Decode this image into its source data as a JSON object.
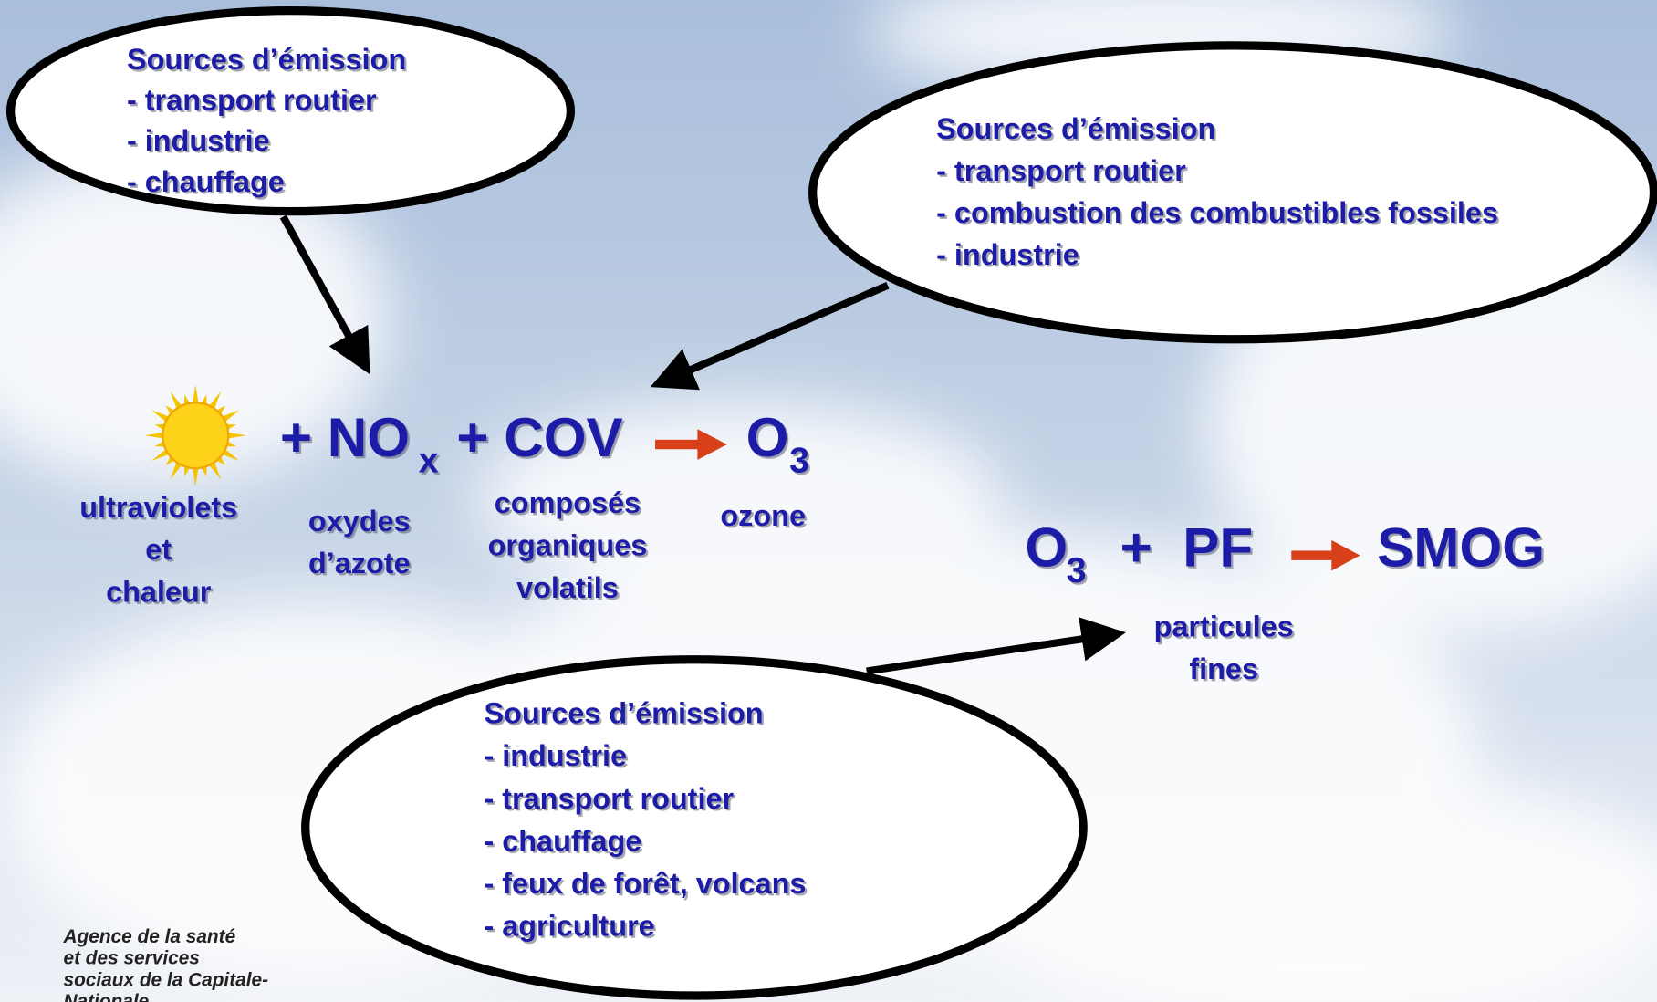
{
  "bubbles": [
    {
      "title": "Sources d’émission",
      "items": [
        "- transport routier",
        "- industrie",
        "- chauffage"
      ]
    },
    {
      "title": "Sources d’émission",
      "items": [
        "- transport routier",
        "- combustion des combustibles fossiles",
        "- industrie"
      ]
    },
    {
      "title": "Sources d’émission",
      "items": [
        "- industrie",
        "- transport routier",
        "- chauffage",
        "- feux de forêt, volcans",
        "- agriculture"
      ]
    }
  ],
  "reaction1": {
    "no": "+ NO",
    "no_sub": "x",
    "cov": "+ COV",
    "o": "O",
    "o_sub": "3",
    "labels": {
      "uv": [
        "ultraviolets",
        "et",
        "chaleur"
      ],
      "nox": [
        "oxydes",
        "d’azote"
      ],
      "cov": [
        "composés",
        "organiques",
        "volatils"
      ],
      "ozone": [
        "ozone"
      ]
    }
  },
  "reaction2": {
    "o": "O",
    "o_sub": "3",
    "pf": "+  PF",
    "smog": "SMOG",
    "pf_label": [
      "particules",
      "fines"
    ]
  },
  "footer": [
    "Agence de la santé",
    "et des services",
    "sociaux de la Capitale-",
    "Nationale"
  ]
}
